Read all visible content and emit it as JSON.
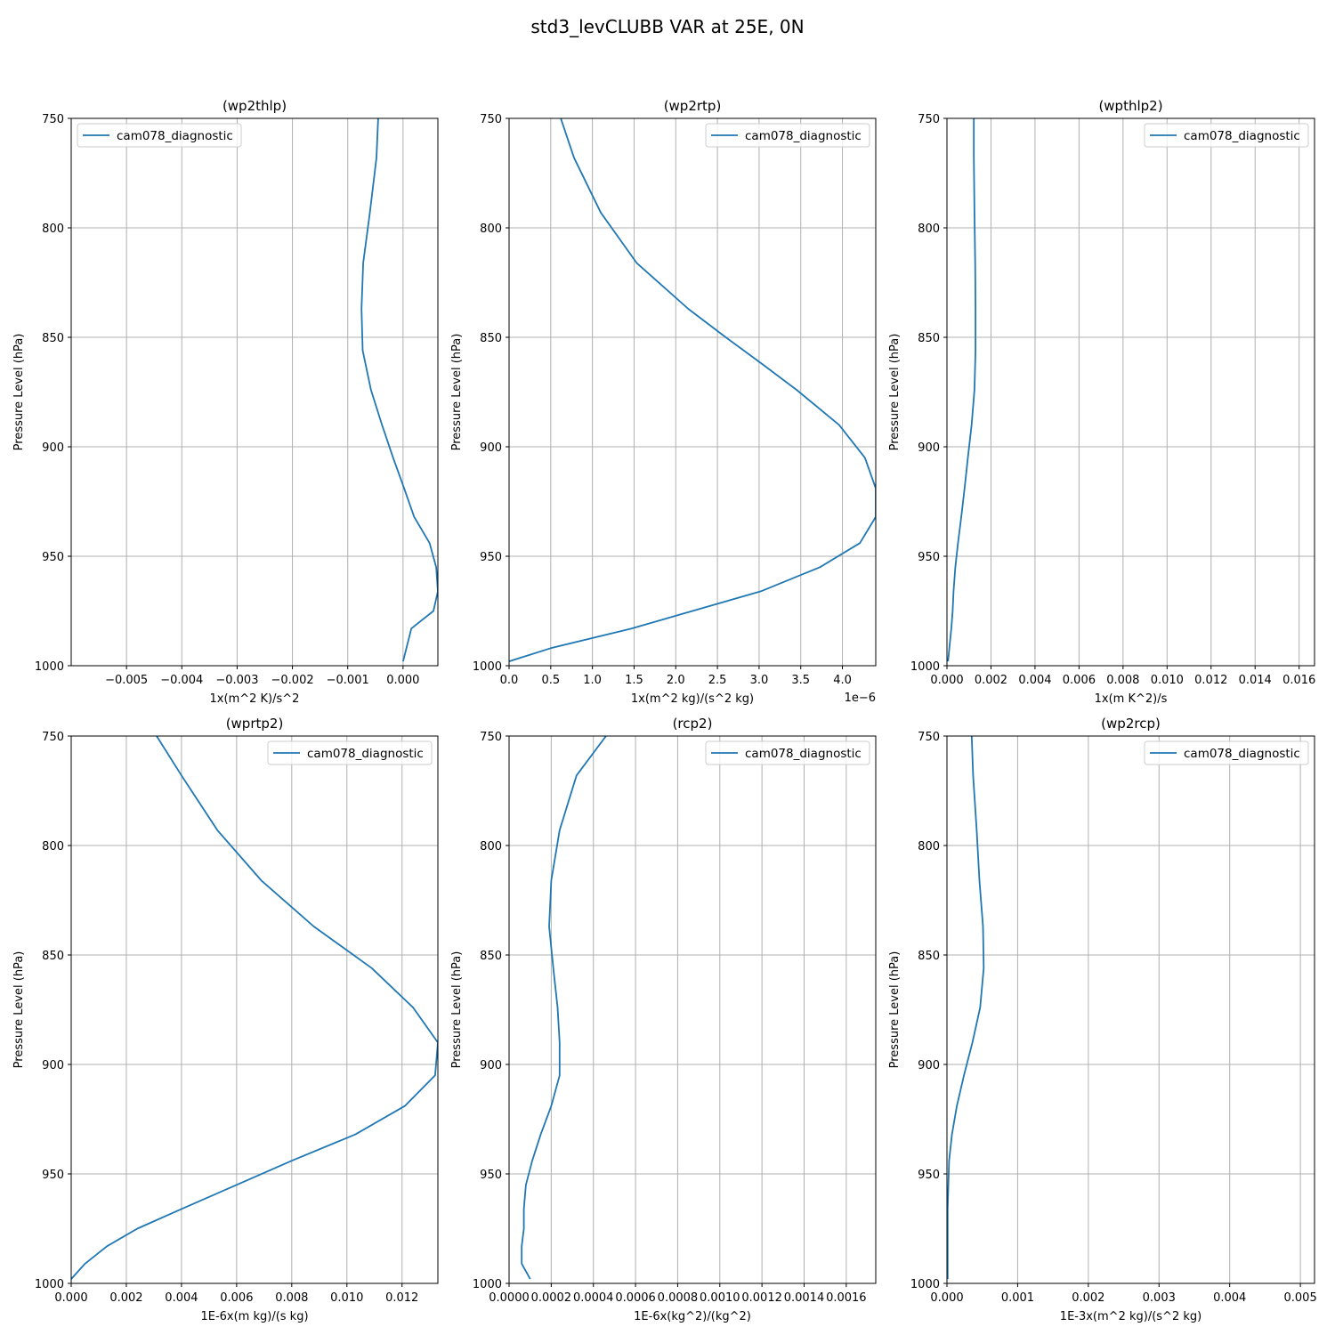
{
  "figure": {
    "suptitle": "std3_levCLUBB VAR at 25E, 0N",
    "line_color": "#1f77b4"
  },
  "chart_data": [
    {
      "type": "line",
      "title": "(wp2thlp)",
      "xlabel": "1x(m^2 K)/s^2",
      "ylabel": "Pressure Level (hPa)",
      "xlim": [
        -0.006,
        0.00063
      ],
      "ylim": [
        1000,
        750
      ],
      "xticks": [
        -0.005,
        -0.004,
        -0.003,
        -0.002,
        -0.001,
        0.0
      ],
      "xtick_labels": [
        "−0.005",
        "−0.004",
        "−0.003",
        "−0.002",
        "−0.001",
        "0.000"
      ],
      "yticks": [
        750,
        800,
        850,
        900,
        950,
        1000
      ],
      "ytick_labels": [
        "750",
        "800",
        "850",
        "900",
        "950",
        "1000"
      ],
      "offset_text": "",
      "grid": true,
      "legend": "upper left",
      "series": [
        {
          "name": "cam078_diagnostic",
          "x": [
            -0.00045,
            -0.00048,
            -0.0006,
            -0.00072,
            -0.00075,
            -0.00073,
            -0.00058,
            -0.00038,
            -0.00018,
            2e-05,
            0.0002,
            0.00048,
            0.0006,
            0.00063,
            0.00055,
            0.00015,
            0.0
          ],
          "y": [
            750,
            768,
            793,
            816,
            837,
            856,
            874,
            890,
            905,
            919,
            932,
            944,
            955,
            966,
            975,
            983,
            998
          ]
        }
      ]
    },
    {
      "type": "line",
      "title": "(wp2rtp)",
      "xlabel": "1x(m^2 kg)/(s^2 kg)",
      "ylabel": "Pressure Level (hPa)",
      "xlim": [
        0.0,
        4.4e-06
      ],
      "ylim": [
        1000,
        750
      ],
      "xticks": [
        0.0,
        5e-07,
        1e-06,
        1.5e-06,
        2e-06,
        2.5e-06,
        3e-06,
        3.5e-06,
        4e-06
      ],
      "xtick_labels": [
        "0.0",
        "0.5",
        "1.0",
        "1.5",
        "2.0",
        "2.5",
        "3.0",
        "3.5",
        "4.0"
      ],
      "yticks": [
        750,
        800,
        850,
        900,
        950,
        1000
      ],
      "ytick_labels": [
        "750",
        "800",
        "850",
        "900",
        "950",
        "1000"
      ],
      "offset_text": "1e−6",
      "grid": true,
      "legend": "upper right",
      "series": [
        {
          "name": "cam078_diagnostic",
          "x": [
            6.2e-07,
            7.8e-07,
            1.1e-06,
            1.53e-06,
            2.15e-06,
            2.6e-06,
            3.03e-06,
            3.45e-06,
            3.96e-06,
            4.27e-06,
            4.4e-06,
            4.4e-06,
            4.21e-06,
            3.73e-06,
            3.02e-06,
            2.2e-06,
            1.47e-06,
            5e-07,
            0.0
          ],
          "y": [
            750,
            768,
            793,
            816,
            837,
            850,
            862,
            874,
            890,
            905,
            919,
            932,
            944,
            955,
            966,
            975,
            983,
            992,
            998
          ]
        }
      ]
    },
    {
      "type": "line",
      "title": "(wpthlp2)",
      "xlabel": "1x(m K^2)/s",
      "ylabel": "Pressure Level (hPa)",
      "xlim": [
        0.0,
        0.0167
      ],
      "ylim": [
        1000,
        750
      ],
      "xticks": [
        0.0,
        0.002,
        0.004,
        0.006,
        0.008,
        0.01,
        0.012,
        0.014,
        0.016
      ],
      "xtick_labels": [
        "0.000",
        "0.002",
        "0.004",
        "0.006",
        "0.008",
        "0.010",
        "0.012",
        "0.014",
        "0.016"
      ],
      "yticks": [
        750,
        800,
        850,
        900,
        950,
        1000
      ],
      "ytick_labels": [
        "750",
        "800",
        "850",
        "900",
        "950",
        "1000"
      ],
      "offset_text": "",
      "grid": true,
      "legend": "upper right",
      "series": [
        {
          "name": "cam078_diagnostic",
          "x": [
            0.00122,
            0.00122,
            0.00125,
            0.00128,
            0.0013,
            0.0013,
            0.00125,
            0.00112,
            0.00095,
            0.0008,
            0.00065,
            0.0005,
            0.00038,
            0.0003,
            0.00026,
            0.0002,
            5e-05
          ],
          "y": [
            750,
            768,
            793,
            816,
            837,
            856,
            874,
            890,
            905,
            919,
            932,
            944,
            955,
            966,
            975,
            983,
            998
          ]
        }
      ]
    },
    {
      "type": "line",
      "title": "(wprtp2)",
      "xlabel": "1E-6x(m kg)/(s kg)",
      "ylabel": "Pressure Level (hPa)",
      "xlim": [
        0.0,
        0.0133
      ],
      "ylim": [
        1000,
        750
      ],
      "xticks": [
        0.0,
        0.002,
        0.004,
        0.006,
        0.008,
        0.01,
        0.012
      ],
      "xtick_labels": [
        "0.000",
        "0.002",
        "0.004",
        "0.006",
        "0.008",
        "0.010",
        "0.012"
      ],
      "yticks": [
        750,
        800,
        850,
        900,
        950,
        1000
      ],
      "ytick_labels": [
        "750",
        "800",
        "850",
        "900",
        "950",
        "1000"
      ],
      "offset_text": "",
      "grid": true,
      "legend": "upper right",
      "series": [
        {
          "name": "cam078_diagnostic",
          "x": [
            0.0031,
            0.004,
            0.0053,
            0.0069,
            0.0088,
            0.0109,
            0.0124,
            0.0133,
            0.0132,
            0.0121,
            0.0103,
            0.008,
            0.006,
            0.004,
            0.0024,
            0.0013,
            0.0005,
            0.0
          ],
          "y": [
            750,
            768,
            793,
            816,
            837,
            856,
            874,
            890,
            905,
            919,
            932,
            944,
            955,
            966,
            975,
            983,
            991,
            998
          ]
        }
      ]
    },
    {
      "type": "line",
      "title": "(rcp2)",
      "xlabel": "1E-6x(kg^2)/(kg^2)",
      "ylabel": "Pressure Level (hPa)",
      "xlim": [
        0.0,
        0.00174
      ],
      "ylim": [
        1000,
        750
      ],
      "xticks": [
        0.0,
        0.0002,
        0.0004,
        0.0006,
        0.0008,
        0.001,
        0.0012,
        0.0014,
        0.0016
      ],
      "xtick_labels": [
        "0.0000",
        "0.0002",
        "0.0004",
        "0.0006",
        "0.0008",
        "0.0010",
        "0.0012",
        "0.0014",
        "0.0016"
      ],
      "yticks": [
        750,
        800,
        850,
        900,
        950,
        1000
      ],
      "ytick_labels": [
        "750",
        "800",
        "850",
        "900",
        "950",
        "1000"
      ],
      "offset_text": "",
      "grid": true,
      "legend": "upper right",
      "series": [
        {
          "name": "cam078_diagnostic",
          "x": [
            0.00046,
            0.00032,
            0.00024,
            0.0002,
            0.00019,
            0.00021,
            0.00023,
            0.00024,
            0.00024,
            0.0002,
            0.00015,
            0.00011,
            8e-05,
            7e-05,
            7e-05,
            6e-05,
            6e-05,
            0.0001
          ],
          "y": [
            750,
            768,
            793,
            816,
            837,
            856,
            874,
            890,
            905,
            919,
            932,
            944,
            955,
            966,
            975,
            983,
            991,
            998
          ]
        }
      ]
    },
    {
      "type": "line",
      "title": "(wp2rcp)",
      "xlabel": "1E-3x(m^2 kg)/(s^2 kg)",
      "ylabel": "Pressure Level (hPa)",
      "xlim": [
        0.0,
        0.0052
      ],
      "ylim": [
        1000,
        750
      ],
      "xticks": [
        0.0,
        0.001,
        0.002,
        0.003,
        0.004,
        0.005
      ],
      "xtick_labels": [
        "0.000",
        "0.001",
        "0.002",
        "0.003",
        "0.004",
        "0.005"
      ],
      "yticks": [
        750,
        800,
        850,
        900,
        950,
        1000
      ],
      "ytick_labels": [
        "750",
        "800",
        "850",
        "900",
        "950",
        "1000"
      ],
      "offset_text": "",
      "grid": true,
      "legend": "upper right",
      "series": [
        {
          "name": "cam078_diagnostic",
          "x": [
            0.00035,
            0.00037,
            0.00042,
            0.00046,
            0.00051,
            0.00052,
            0.00047,
            0.00036,
            0.00024,
            0.00014,
            7e-05,
            3e-05,
            2e-05,
            1e-05,
            1e-05,
            1e-05,
            1e-05,
            1e-05
          ],
          "y": [
            750,
            768,
            793,
            816,
            837,
            856,
            874,
            890,
            905,
            919,
            932,
            944,
            955,
            966,
            975,
            983,
            991,
            998
          ]
        }
      ]
    }
  ]
}
